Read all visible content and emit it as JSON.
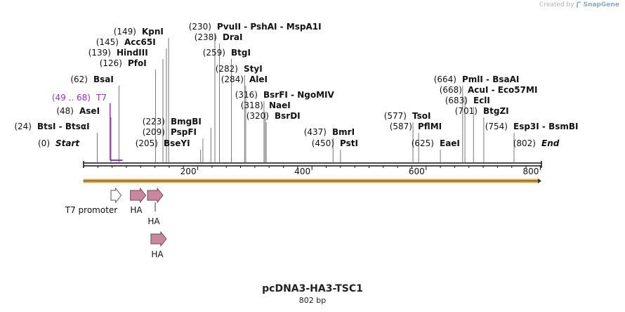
{
  "credit": {
    "prefix": "Created by",
    "brand": "SnapGene"
  },
  "map": {
    "title": "pcDNA3-HA3-TSC1",
    "length_label": "802 bp",
    "length_bp": 802,
    "ticks": [
      {
        "bp": 200,
        "label": "200"
      },
      {
        "bp": 400,
        "label": "400"
      },
      {
        "bp": 600,
        "label": "600"
      },
      {
        "bp": 800,
        "label": "800"
      }
    ],
    "colors": {
      "backbone": "#111111",
      "arrow": "#e8b84a",
      "ha": "#c9879f",
      "t7": "#9b30c8"
    }
  },
  "sites": [
    {
      "pos": "(0)",
      "name": "Start",
      "bp": 0,
      "italic": true
    },
    {
      "pos": "(24)",
      "name": "BtsI - BtsαI",
      "bp": 24
    },
    {
      "pos": "(48)",
      "name": "AseI",
      "bp": 48
    },
    {
      "pos": "(62)",
      "name": "BsaI",
      "bp": 62
    },
    {
      "pos": "(126)",
      "name": "PfoI",
      "bp": 126
    },
    {
      "pos": "(139)",
      "name": "HindIII",
      "bp": 139
    },
    {
      "pos": "(145)",
      "name": "Acc65I",
      "bp": 145
    },
    {
      "pos": "(149)",
      "name": "KpnI",
      "bp": 149
    },
    {
      "pos": "(205)",
      "name": "BseYI",
      "bp": 205
    },
    {
      "pos": "(209)",
      "name": "PspFI",
      "bp": 209
    },
    {
      "pos": "(223)",
      "name": "BmgBI",
      "bp": 223
    },
    {
      "pos": "(230)",
      "name": "PvuII - PshAI - MspA1I",
      "bp": 230
    },
    {
      "pos": "(238)",
      "name": "DraI",
      "bp": 238
    },
    {
      "pos": "(259)",
      "name": "BtgI",
      "bp": 259
    },
    {
      "pos": "(282)",
      "name": "StyI",
      "bp": 282
    },
    {
      "pos": "(284)",
      "name": "AleI",
      "bp": 284
    },
    {
      "pos": "(316)",
      "name": "BsrFI - NgoMIV",
      "bp": 316
    },
    {
      "pos": "(318)",
      "name": "NaeI",
      "bp": 318
    },
    {
      "pos": "(320)",
      "name": "BsrDI",
      "bp": 320
    },
    {
      "pos": "(437)",
      "name": "BmrI",
      "bp": 437
    },
    {
      "pos": "(450)",
      "name": "PstI",
      "bp": 450
    },
    {
      "pos": "(577)",
      "name": "TsoI",
      "bp": 577
    },
    {
      "pos": "(587)",
      "name": "PflMI",
      "bp": 587
    },
    {
      "pos": "(625)",
      "name": "EaeI",
      "bp": 625
    },
    {
      "pos": "(664)",
      "name": "PmlI - BsaAI",
      "bp": 664
    },
    {
      "pos": "(668)",
      "name": "AcuI - Eco57MI",
      "bp": 668
    },
    {
      "pos": "(683)",
      "name": "EclI",
      "bp": 683
    },
    {
      "pos": "(701)",
      "name": "BtgZI",
      "bp": 701
    },
    {
      "pos": "(754)",
      "name": "Esp3I - BsmBI",
      "bp": 754
    },
    {
      "pos": "(802)",
      "name": "End",
      "bp": 802,
      "italic": true
    }
  ],
  "primer": {
    "pos": "(49 .. 68)",
    "name": "T7",
    "start_bp": 49,
    "end_bp": 68
  },
  "features": [
    {
      "name": "T7 promoter",
      "start_bp": 48,
      "end_bp": 66,
      "kind": "promoter"
    },
    {
      "name": "HA",
      "start_bp": 82,
      "end_bp": 109,
      "kind": "tag"
    },
    {
      "name": "HA",
      "start_bp": 112,
      "end_bp": 139,
      "kind": "tag"
    },
    {
      "name": "HA",
      "start_bp": 118,
      "end_bp": 145,
      "kind": "tag"
    }
  ]
}
